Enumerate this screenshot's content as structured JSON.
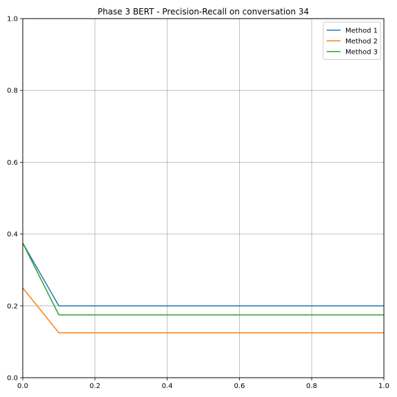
{
  "chart_data": {
    "type": "line",
    "title": "Phase 3 BERT - Precision-Recall on conversation 34",
    "xlabel": "",
    "ylabel": "",
    "xlim": [
      0,
      1
    ],
    "ylim": [
      0,
      1
    ],
    "xticks": [
      "0.0",
      "0.2",
      "0.4",
      "0.6",
      "0.8",
      "1.0"
    ],
    "yticks": [
      "0.0",
      "0.2",
      "0.4",
      "0.6",
      "0.8",
      "1.0"
    ],
    "grid": true,
    "legend_position": "top-right",
    "x": [
      0.0,
      0.1,
      1.0
    ],
    "series": [
      {
        "name": "Method 1",
        "color": "#1f77b4",
        "values": [
          0.375,
          0.2,
          0.2
        ]
      },
      {
        "name": "Method 2",
        "color": "#ff7f0e",
        "values": [
          0.25,
          0.125,
          0.125
        ]
      },
      {
        "name": "Method 3",
        "color": "#2ca02c",
        "values": [
          0.375,
          0.175,
          0.175
        ]
      }
    ]
  }
}
